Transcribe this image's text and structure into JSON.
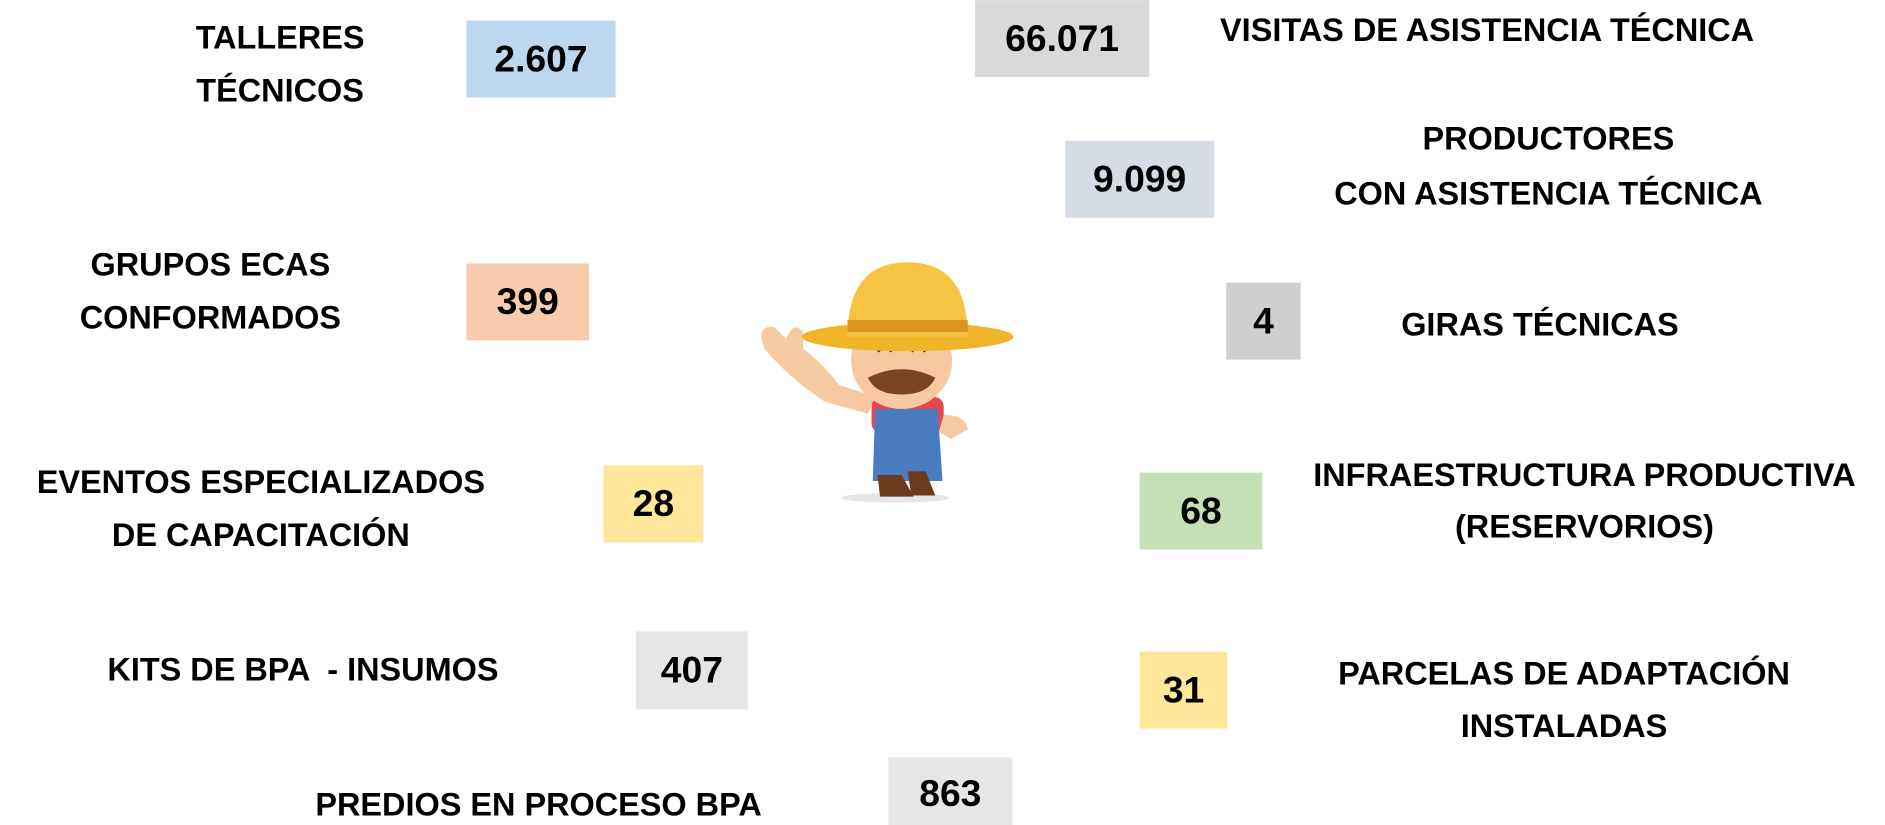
{
  "items": [
    {
      "label": [
        "TALLERES",
        "TÉCNICOS"
      ],
      "value": "2.607"
    },
    {
      "label": [
        "GRUPOS ECAS",
        "CONFORMADOS"
      ],
      "value": "399"
    },
    {
      "label": [
        "EVENTOS ESPECIALIZADOS",
        "DE CAPACITACIÓN"
      ],
      "value": "28"
    },
    {
      "label": [
        "KITS DE BPA  - INSUMOS"
      ],
      "value": "407"
    },
    {
      "label": [
        "PREDIOS EN PROCESO BPA"
      ],
      "value": "863"
    },
    {
      "label": [
        "VISITAS DE ASISTENCIA TÉCNICA"
      ],
      "value": "66.071"
    },
    {
      "label": [
        "PRODUCTORES",
        "CON ASISTENCIA TÉCNICA"
      ],
      "value": "9.099"
    },
    {
      "label": [
        "GIRAS TÉCNICAS"
      ],
      "value": "4"
    },
    {
      "label": [
        "INFRAESTRUCTURA PRODUCTIVA",
        "(RESERVORIOS)"
      ],
      "value": "68"
    },
    {
      "label": [
        "PARCELAS DE ADAPTACIÓN",
        "INSTALADAS"
      ],
      "value": "31"
    }
  ]
}
